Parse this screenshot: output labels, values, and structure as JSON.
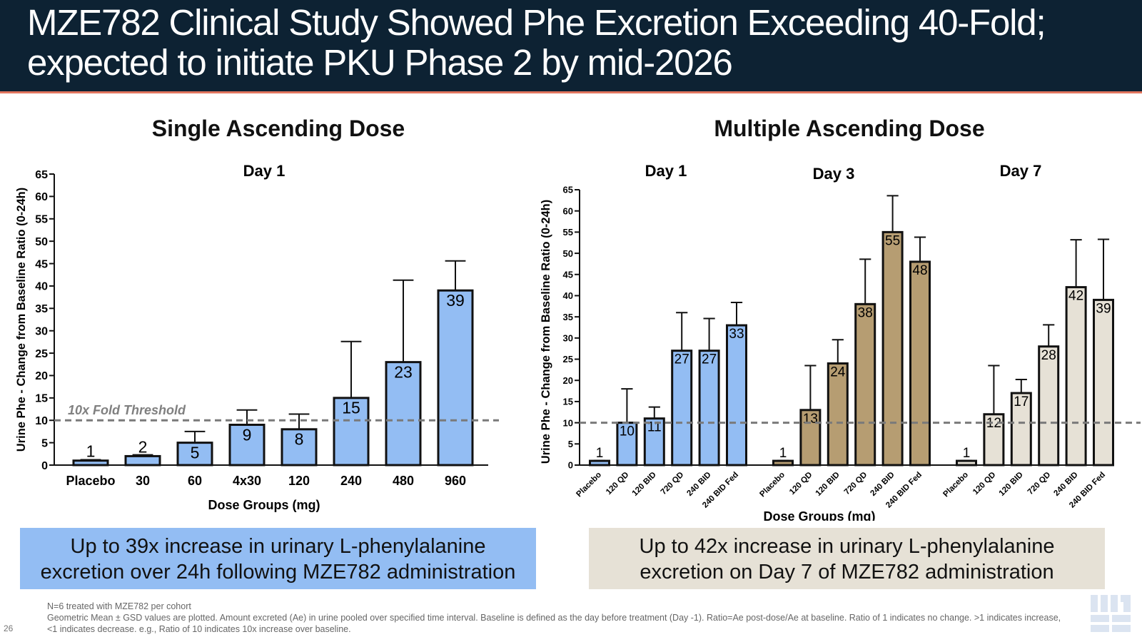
{
  "header": {
    "title": "MZE782 Clinical Study Showed Phe Excretion Exceeding 40-Fold;\nexpected to initiate PKU Phase 2 by mid-2026"
  },
  "colors": {
    "header_bg": "#0d2233",
    "accent_line": "#e2765f",
    "blue_bar": "#93bdf3",
    "brown_bar": "#b69d72",
    "beige_bar": "#e6e1d6",
    "threshold_line": "#7a7a7a"
  },
  "sections": {
    "sad_title": "Single Ascending Dose",
    "mad_title": "Multiple Ascending Dose"
  },
  "callouts": {
    "sad": "Up to 39x increase in urinary L-phenylalanine\nexcretion over 24h following MZE782 administration",
    "mad": "Up to 42x increase in urinary L-phenylalanine\nexcretion on Day 7 of MZE782 administration"
  },
  "footnote": {
    "line1": "N=6 treated with MZE782 per cohort",
    "line2": "Geometric Mean ± GSD values are plotted. Amount excreted (Ae) in urine pooled over specified time interval. Baseline is defined as the day before treatment (Day -1).  Ratio=Ae post-dose/Ae at baseline. Ratio of 1 indicates no change. >1 indicates increase, <1 indicates decrease. e.g., Ratio of 10 indicates 10x increase over baseline."
  },
  "page_number": "26",
  "logo": {
    "icon": "maze-logo-icon",
    "color": "#dbe4f1"
  },
  "chart_data": [
    {
      "type": "bar",
      "title": "Day 1",
      "xlabel": "Dose Groups (mg)",
      "ylabel": "Urine Phe - Change from Baseline Ratio (0-24h)",
      "ylim": [
        0,
        65
      ],
      "yticks": [
        0,
        5,
        10,
        15,
        20,
        25,
        30,
        35,
        40,
        45,
        50,
        55,
        60,
        65
      ],
      "categories": [
        "Placebo",
        "30",
        "60",
        "4x30",
        "120",
        "240",
        "480",
        "960"
      ],
      "values": [
        1,
        2,
        5,
        9,
        8,
        15,
        23,
        39
      ],
      "data_labels": [
        "1",
        "2",
        "5",
        "9",
        "8",
        "15",
        "23",
        "39"
      ],
      "error_upper": [
        1.2,
        2.3,
        7.5,
        12.3,
        11.4,
        27.6,
        41.3,
        45.6
      ],
      "threshold": {
        "value": 10,
        "label": "10x Fold Threshold"
      },
      "bar_color": "#93bdf3",
      "grid": false
    },
    {
      "type": "bar",
      "xlabel": "Dose Groups (mg)",
      "ylabel": "Urine Phe - Change from Baseline Ratio (0-24h)",
      "ylim": [
        0,
        65
      ],
      "yticks": [
        0,
        5,
        10,
        15,
        20,
        25,
        30,
        35,
        40,
        45,
        50,
        55,
        60,
        65
      ],
      "threshold": {
        "value": 10
      },
      "grid": false,
      "groups": [
        {
          "title": "Day 1",
          "color": "#93bdf3",
          "categories": [
            "Placebo",
            "120 QD",
            "120 BID",
            "720 QD",
            "240 BID",
            "240 BID Fed"
          ],
          "values": [
            1,
            10,
            11,
            27,
            27,
            33
          ],
          "data_labels": [
            "1",
            "10",
            "11",
            "27",
            "27",
            "33"
          ],
          "error_upper": [
            1.1,
            18,
            13.7,
            36,
            34.6,
            38.4
          ]
        },
        {
          "title": "Day 3",
          "color": "#b69d72",
          "categories": [
            "Placebo",
            "120 QD",
            "120 BID",
            "720 QD",
            "240 BID",
            "240 BID Fed"
          ],
          "values": [
            1,
            13,
            24,
            38,
            55,
            48
          ],
          "data_labels": [
            "1",
            "13",
            "24",
            "38",
            "55",
            "48"
          ],
          "error_upper": [
            1.1,
            23.5,
            29.6,
            48.6,
            63.6,
            53.8
          ]
        },
        {
          "title": "Day 7",
          "color": "#e6e1d6",
          "categories": [
            "Placebo",
            "120 QD",
            "120 BID",
            "720 QD",
            "240 BID",
            "240 BID Fed"
          ],
          "values": [
            1,
            12,
            17,
            28,
            42,
            39
          ],
          "data_labels": [
            "1",
            "12",
            "17",
            "28",
            "42",
            "39"
          ],
          "error_upper": [
            1.1,
            23.5,
            20.2,
            33.1,
            53.2,
            53.3
          ]
        }
      ]
    }
  ]
}
